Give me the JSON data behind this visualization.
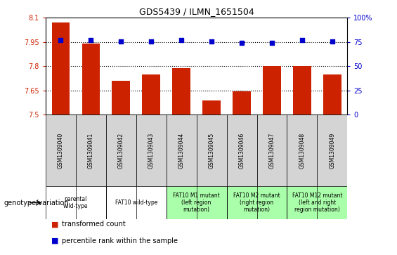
{
  "title": "GDS5439 / ILMN_1651504",
  "samples": [
    "GSM1309040",
    "GSM1309041",
    "GSM1309042",
    "GSM1309043",
    "GSM1309044",
    "GSM1309045",
    "GSM1309046",
    "GSM1309047",
    "GSM1309048",
    "GSM1309049"
  ],
  "bar_values": [
    8.07,
    7.94,
    7.71,
    7.75,
    7.79,
    7.59,
    7.645,
    7.8,
    7.8,
    7.75
  ],
  "dot_values": [
    77,
    77,
    76,
    76,
    77,
    76,
    74,
    74,
    77,
    76
  ],
  "bar_color": "#cc2200",
  "dot_color": "#0000cc",
  "ylim_left": [
    7.5,
    8.1
  ],
  "ylim_right": [
    0,
    100
  ],
  "yticks_left": [
    7.5,
    7.65,
    7.8,
    7.95,
    8.1
  ],
  "yticks_right": [
    0,
    25,
    50,
    75,
    100
  ],
  "hlines": [
    7.95,
    7.8,
    7.65
  ],
  "sample_row_color": "#d4d4d4",
  "genotype_groups": [
    {
      "label": "parental\nwild-type",
      "start": 0,
      "end": 2,
      "color": "#ffffff"
    },
    {
      "label": "FAT10 wild-type",
      "start": 2,
      "end": 4,
      "color": "#ffffff"
    },
    {
      "label": "FAT10 M1 mutant\n(left region\nmutation)",
      "start": 4,
      "end": 6,
      "color": "#aaffaa"
    },
    {
      "label": "FAT10 M2 mutant\n(right region\nmutation)",
      "start": 6,
      "end": 8,
      "color": "#aaffaa"
    },
    {
      "label": "FAT10 M12 mutant\n(left and right\nregion mutation)",
      "start": 8,
      "end": 10,
      "color": "#aaffaa"
    }
  ],
  "legend_items": [
    {
      "label": "transformed count",
      "color": "#cc2200"
    },
    {
      "label": "percentile rank within the sample",
      "color": "#0000cc"
    }
  ],
  "genotype_label": "genotype/variation"
}
